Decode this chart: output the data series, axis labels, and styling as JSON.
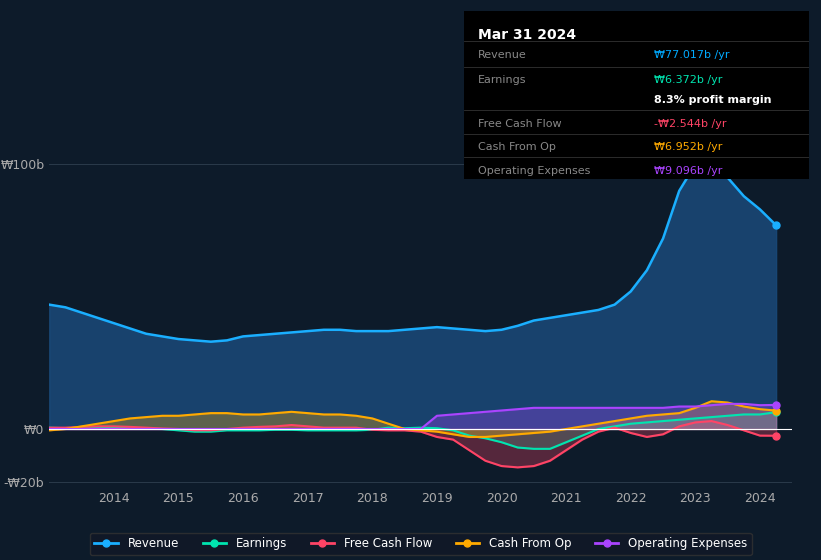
{
  "bg_color": "#0d1b2a",
  "plot_bg": "#0d1b2a",
  "grid_color": "#2a3a4a",
  "title_box": {
    "date": "Mar 31 2024",
    "rows": [
      {
        "label": "Revenue",
        "value": "₩77.017b /yr",
        "value_color": "#00aaff"
      },
      {
        "label": "Earnings",
        "value": "₩6.372b /yr",
        "value_color": "#00e5b0"
      },
      {
        "label": "",
        "value": "8.3% profit margin",
        "value_color": "#ffffff"
      },
      {
        "label": "Free Cash Flow",
        "value": "-₩2.544b /yr",
        "value_color": "#ff4466"
      },
      {
        "label": "Cash From Op",
        "value": "₩6.952b /yr",
        "value_color": "#ffaa00"
      },
      {
        "label": "Operating Expenses",
        "value": "₩9.096b /yr",
        "value_color": "#aa44ff"
      }
    ]
  },
  "ylabel_top": "₩100b",
  "ylabel_zero": "₩0",
  "ylabel_bottom": "-₩20b",
  "series": {
    "revenue": {
      "color": "#1aafff",
      "fill_color": "#1a4a7a",
      "label": "Revenue",
      "x": [
        2013.0,
        2013.25,
        2013.5,
        2013.75,
        2014.0,
        2014.25,
        2014.5,
        2014.75,
        2015.0,
        2015.25,
        2015.5,
        2015.75,
        2016.0,
        2016.25,
        2016.5,
        2016.75,
        2017.0,
        2017.25,
        2017.5,
        2017.75,
        2018.0,
        2018.25,
        2018.5,
        2018.75,
        2019.0,
        2019.25,
        2019.5,
        2019.75,
        2020.0,
        2020.25,
        2020.5,
        2020.75,
        2021.0,
        2021.25,
        2021.5,
        2021.75,
        2022.0,
        2022.25,
        2022.5,
        2022.75,
        2023.0,
        2023.25,
        2023.5,
        2023.75,
        2024.0,
        2024.25
      ],
      "y": [
        47,
        46,
        44,
        42,
        40,
        38,
        36,
        35,
        34,
        33.5,
        33,
        33.5,
        35,
        35.5,
        36,
        36.5,
        37,
        37.5,
        37.5,
        37,
        37,
        37,
        37.5,
        38,
        38.5,
        38,
        37.5,
        37,
        37.5,
        39,
        41,
        42,
        43,
        44,
        45,
        47,
        52,
        60,
        72,
        90,
        100,
        99,
        95,
        88,
        83,
        77
      ]
    },
    "earnings": {
      "color": "#00e5b0",
      "label": "Earnings",
      "x": [
        2013.0,
        2013.25,
        2013.5,
        2013.75,
        2014.0,
        2014.25,
        2014.5,
        2014.75,
        2015.0,
        2015.25,
        2015.5,
        2015.75,
        2016.0,
        2016.25,
        2016.5,
        2016.75,
        2017.0,
        2017.25,
        2017.5,
        2017.75,
        2018.0,
        2018.25,
        2018.5,
        2018.75,
        2019.0,
        2019.25,
        2019.5,
        2019.75,
        2020.0,
        2020.25,
        2020.5,
        2020.75,
        2021.0,
        2021.25,
        2021.5,
        2021.75,
        2022.0,
        2022.25,
        2022.5,
        2022.75,
        2023.0,
        2023.25,
        2023.5,
        2023.75,
        2024.0,
        2024.25
      ],
      "y": [
        0.5,
        0.3,
        0.5,
        0.5,
        0.5,
        0.3,
        0.2,
        0.0,
        -0.5,
        -1.0,
        -1.0,
        -0.5,
        -0.5,
        -0.5,
        -0.3,
        -0.3,
        -0.5,
        -0.5,
        -0.5,
        -0.5,
        -0.3,
        0.5,
        0.3,
        0.5,
        0.3,
        -0.5,
        -2.5,
        -3.5,
        -5.0,
        -7.0,
        -7.5,
        -7.5,
        -5.0,
        -2.5,
        0.0,
        1.0,
        2.0,
        2.5,
        3.0,
        3.5,
        4.0,
        4.5,
        5.0,
        5.5,
        5.5,
        6.372
      ]
    },
    "free_cash_flow": {
      "color": "#ff4466",
      "label": "Free Cash Flow",
      "x": [
        2013.0,
        2013.25,
        2013.5,
        2013.75,
        2014.0,
        2014.25,
        2014.5,
        2014.75,
        2015.0,
        2015.25,
        2015.5,
        2015.75,
        2016.0,
        2016.25,
        2016.5,
        2016.75,
        2017.0,
        2017.25,
        2017.5,
        2017.75,
        2018.0,
        2018.25,
        2018.5,
        2018.75,
        2019.0,
        2019.25,
        2019.5,
        2019.75,
        2020.0,
        2020.25,
        2020.5,
        2020.75,
        2021.0,
        2021.25,
        2021.5,
        2021.75,
        2022.0,
        2022.25,
        2022.5,
        2022.75,
        2023.0,
        2023.25,
        2023.5,
        2023.75,
        2024.0,
        2024.25
      ],
      "y": [
        0.5,
        0.5,
        0.8,
        1.0,
        1.0,
        0.8,
        0.5,
        0.2,
        0.0,
        -0.5,
        -0.5,
        0.0,
        0.5,
        0.8,
        1.0,
        1.5,
        1.0,
        0.5,
        0.5,
        0.5,
        -0.3,
        -0.5,
        -0.5,
        -1.0,
        -3.0,
        -4.0,
        -8.0,
        -12.0,
        -14.0,
        -14.5,
        -14.0,
        -12.0,
        -8.0,
        -4.0,
        -1.0,
        0.5,
        -1.5,
        -3.0,
        -2.0,
        1.0,
        2.5,
        3.0,
        1.5,
        -0.5,
        -2.5,
        -2.544
      ]
    },
    "cash_from_op": {
      "color": "#ffaa00",
      "label": "Cash From Op",
      "x": [
        2013.0,
        2013.25,
        2013.5,
        2013.75,
        2014.0,
        2014.25,
        2014.5,
        2014.75,
        2015.0,
        2015.25,
        2015.5,
        2015.75,
        2016.0,
        2016.25,
        2016.5,
        2016.75,
        2017.0,
        2017.25,
        2017.5,
        2017.75,
        2018.0,
        2018.25,
        2018.5,
        2018.75,
        2019.0,
        2019.25,
        2019.5,
        2019.75,
        2020.0,
        2020.25,
        2020.5,
        2020.75,
        2021.0,
        2021.25,
        2021.5,
        2021.75,
        2022.0,
        2022.25,
        2022.5,
        2022.75,
        2023.0,
        2023.25,
        2023.5,
        2023.75,
        2024.0,
        2024.25
      ],
      "y": [
        -0.5,
        0.0,
        1.0,
        2.0,
        3.0,
        4.0,
        4.5,
        5.0,
        5.0,
        5.5,
        6.0,
        6.0,
        5.5,
        5.5,
        6.0,
        6.5,
        6.0,
        5.5,
        5.5,
        5.0,
        4.0,
        2.0,
        0.0,
        -0.5,
        -1.0,
        -2.0,
        -3.0,
        -3.0,
        -2.5,
        -2.0,
        -1.5,
        -1.0,
        0.0,
        1.0,
        2.0,
        3.0,
        4.0,
        5.0,
        5.5,
        6.0,
        8.0,
        10.5,
        10.0,
        8.5,
        7.5,
        6.952
      ]
    },
    "operating_expenses": {
      "color": "#aa44ff",
      "label": "Operating Expenses",
      "x": [
        2013.0,
        2013.25,
        2013.5,
        2013.75,
        2014.0,
        2014.25,
        2014.5,
        2014.75,
        2015.0,
        2015.25,
        2015.5,
        2015.75,
        2016.0,
        2016.25,
        2016.5,
        2016.75,
        2017.0,
        2017.25,
        2017.5,
        2017.75,
        2018.0,
        2018.25,
        2018.5,
        2018.75,
        2019.0,
        2019.25,
        2019.5,
        2019.75,
        2020.0,
        2020.25,
        2020.5,
        2020.75,
        2021.0,
        2021.25,
        2021.5,
        2021.75,
        2022.0,
        2022.25,
        2022.5,
        2022.75,
        2023.0,
        2023.25,
        2023.5,
        2023.75,
        2024.0,
        2024.25
      ],
      "y": [
        0.0,
        0.0,
        0.0,
        0.0,
        0.0,
        0.0,
        0.0,
        0.0,
        0.0,
        0.0,
        0.0,
        0.0,
        0.0,
        0.0,
        0.0,
        0.0,
        0.0,
        0.0,
        0.0,
        0.0,
        0.0,
        0.0,
        0.0,
        0.0,
        5.0,
        5.5,
        6.0,
        6.5,
        7.0,
        7.5,
        8.0,
        8.0,
        8.0,
        8.0,
        8.0,
        8.0,
        8.0,
        8.0,
        8.0,
        8.5,
        8.5,
        9.0,
        9.5,
        9.5,
        9.0,
        9.096
      ]
    }
  },
  "yticks": [
    -20,
    0,
    100
  ],
  "ytick_labels": [
    "-₩20b",
    "₩0",
    "₩100b"
  ],
  "xticks": [
    2014,
    2015,
    2016,
    2017,
    2018,
    2019,
    2020,
    2021,
    2022,
    2023,
    2024
  ],
  "xlim": [
    2013.0,
    2024.5
  ],
  "ylim": [
    -22,
    105
  ]
}
